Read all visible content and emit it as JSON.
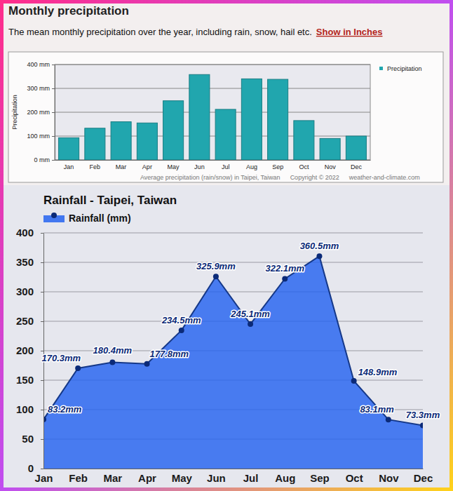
{
  "chart_data": [
    {
      "type": "bar",
      "title": "Monthly precipitation",
      "subtitle": "The mean monthly precipitation over the year, including rain, snow, hail etc.",
      "annotations": [
        "Show in Inches",
        "Average precipitation (rain/snow) in Taipei, Taiwan",
        "Copyright © 2022",
        "weather-and-climate.com"
      ],
      "ylabel": "Precipitation",
      "categories": [
        "Jan",
        "Feb",
        "Mar",
        "Apr",
        "May",
        "Jun",
        "Jul",
        "Aug",
        "Sep",
        "Oct",
        "Nov",
        "Dec"
      ],
      "series": [
        {
          "name": "Precipitation",
          "color": "#21a6ae",
          "values": [
            93,
            133,
            160,
            155,
            248,
            358,
            212,
            340,
            338,
            165,
            90,
            100
          ]
        }
      ],
      "ylim": [
        0,
        400
      ],
      "yticks": [
        {
          "value": 0,
          "label": "0 mm"
        },
        {
          "value": 100,
          "label": "100 mm"
        },
        {
          "value": 200,
          "label": "200 mm"
        },
        {
          "value": 300,
          "label": "300 mm"
        },
        {
          "value": 400,
          "label": "400 mm"
        }
      ],
      "grid": true,
      "legend": "top-right"
    },
    {
      "type": "area",
      "title": "Rainfall - Taipei, Taiwan",
      "categories": [
        "Jan",
        "Feb",
        "Mar",
        "Apr",
        "May",
        "Jun",
        "Jul",
        "Aug",
        "Sep",
        "Oct",
        "Nov",
        "Dec"
      ],
      "series": [
        {
          "name": "Rainfall (mm)",
          "color": "#2563f0",
          "marker": "circle",
          "values": [
            83.2,
            170.3,
            180.4,
            177.8,
            234.5,
            325.9,
            245.1,
            322.1,
            360.5,
            148.9,
            83.1,
            73.3
          ],
          "value_labels": [
            "83.2mm",
            "170.3mm",
            "180.4mm",
            "177.8mm",
            "234.5mm",
            "325.9mm",
            "245.1mm",
            "322.1mm",
            "360.5mm",
            "148.9mm",
            "83.1mm",
            "73.3mm"
          ]
        }
      ],
      "ylim": [
        0,
        400
      ],
      "yticks": [
        0,
        50,
        100,
        150,
        200,
        250,
        300,
        350,
        400
      ],
      "grid": true,
      "legend": "top-left",
      "data_labels": true
    }
  ]
}
